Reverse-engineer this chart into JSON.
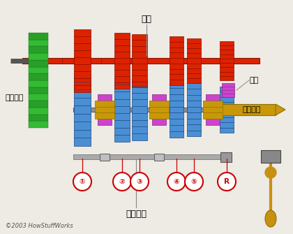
{
  "bg_color": "#eeeae4",
  "title_text": "换挡拨叉",
  "label_fuzhou": "副轴",
  "label_zifadongji": "自发动机",
  "label_zhichasuqi": "至差速器",
  "label_nianglun": "惰轮",
  "copyright": "©2003 HowStuffWorks",
  "gear_labels": [
    "①",
    "②",
    "③",
    "④",
    "⑤",
    "R"
  ],
  "blue_gear_color": "#4a8fd4",
  "blue_mid_color": "#3070b8",
  "blue_dark_color": "#1a4880",
  "red_gear_color": "#dd2200",
  "red_mid_color": "#bb1a00",
  "red_dark_color": "#881000",
  "green_gear_color": "#33bb33",
  "green_dark_color": "#187018",
  "purple_color": "#cc44cc",
  "purple_dark": "#882288",
  "gold_color": "#c8980a",
  "gold_dark": "#907000",
  "shaft_gray": "#909090",
  "shaft_dark": "#606060",
  "stick_color": "#c89010",
  "stick_dark": "#907000",
  "box_color": "#888888",
  "ann_red": "#cc0000",
  "ann_line": "#cc0000"
}
